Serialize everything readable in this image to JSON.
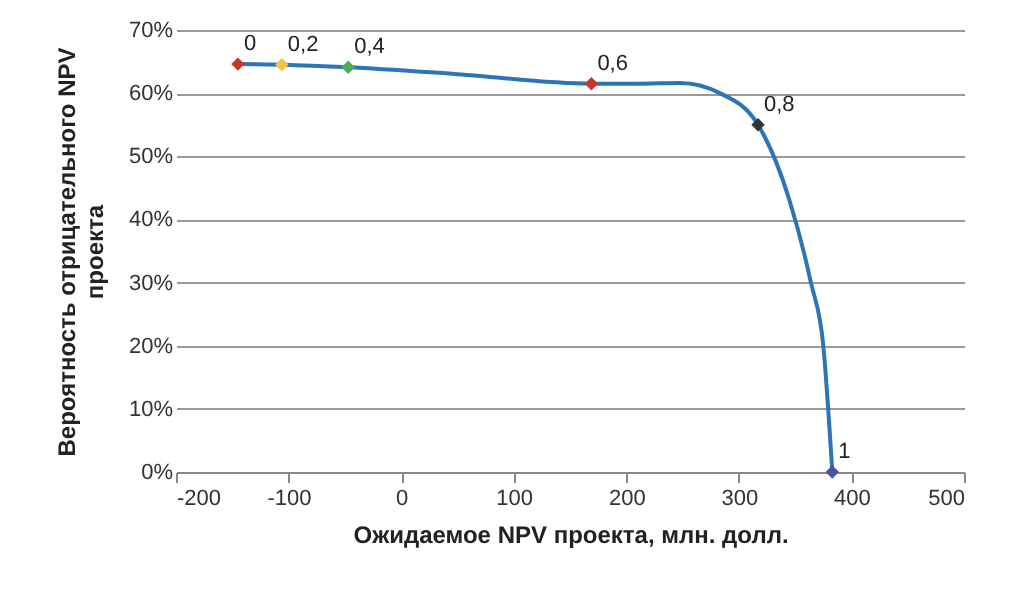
{
  "chart_data": {
    "type": "line",
    "xlabel": "Ожидаемое NPV проекта, млн. долл.",
    "ylabel": "Вероятность отрицательного NPV\nпроекта",
    "xlim": [
      -200,
      500
    ],
    "xticks": [
      -200,
      -100,
      0,
      100,
      200,
      300,
      400,
      500
    ],
    "ylim": [
      0,
      70
    ],
    "yticks": [
      {
        "value": 0,
        "label": "0%"
      },
      {
        "value": 10,
        "label": "10%"
      },
      {
        "value": 20,
        "label": "20%"
      },
      {
        "value": 30,
        "label": "30%"
      },
      {
        "value": 40,
        "label": "40%"
      },
      {
        "value": 50,
        "label": "50%"
      },
      {
        "value": 60,
        "label": "60%"
      },
      {
        "value": 70,
        "label": "70%"
      }
    ],
    "grid": "y",
    "series": [
      {
        "color": "#2e75b6",
        "marker": "none",
        "x": [
          -145,
          -106,
          -47,
          50,
          169,
          210,
          248,
          283,
          317,
          345,
          364,
          375,
          383
        ],
        "values": [
          64.6,
          64.5,
          64.1,
          63,
          61.5,
          61.5,
          61.6,
          60,
          55,
          43,
          30,
          20,
          0
        ]
      },
      {
        "type": "scatter",
        "marker": "diamond",
        "x": [
          -145,
          -106,
          -47,
          169,
          317,
          383
        ],
        "values": [
          64.6,
          64.5,
          64.1,
          61.5,
          55,
          0
        ],
        "colors": [
          "#c0392b",
          "#f5c242",
          "#4caf50",
          "#c0392b",
          "#333333",
          "#5050a0"
        ]
      }
    ],
    "annotations": [
      {
        "text": "0",
        "x": -145,
        "y": 64.6
      },
      {
        "text": "0,2",
        "x": -106,
        "y": 64.5
      },
      {
        "text": "0,4",
        "x": -47,
        "y": 64.1
      },
      {
        "text": "0,6",
        "x": 169,
        "y": 61.5
      },
      {
        "text": "0,8",
        "x": 317,
        "y": 55
      },
      {
        "text": "1",
        "x": 383,
        "y": 0
      }
    ]
  }
}
